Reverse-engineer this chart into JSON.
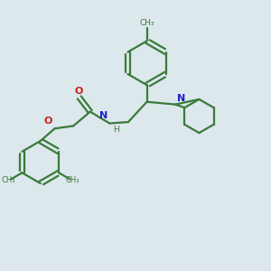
{
  "bg_color": "#dce8ec",
  "bond_color": "#3a7a3a",
  "N_color": "#2020cc",
  "O_color": "#cc2020",
  "figsize": [
    3.0,
    3.0
  ],
  "dpi": 100,
  "xlim": [
    0,
    10
  ],
  "ylim": [
    0,
    10
  ]
}
